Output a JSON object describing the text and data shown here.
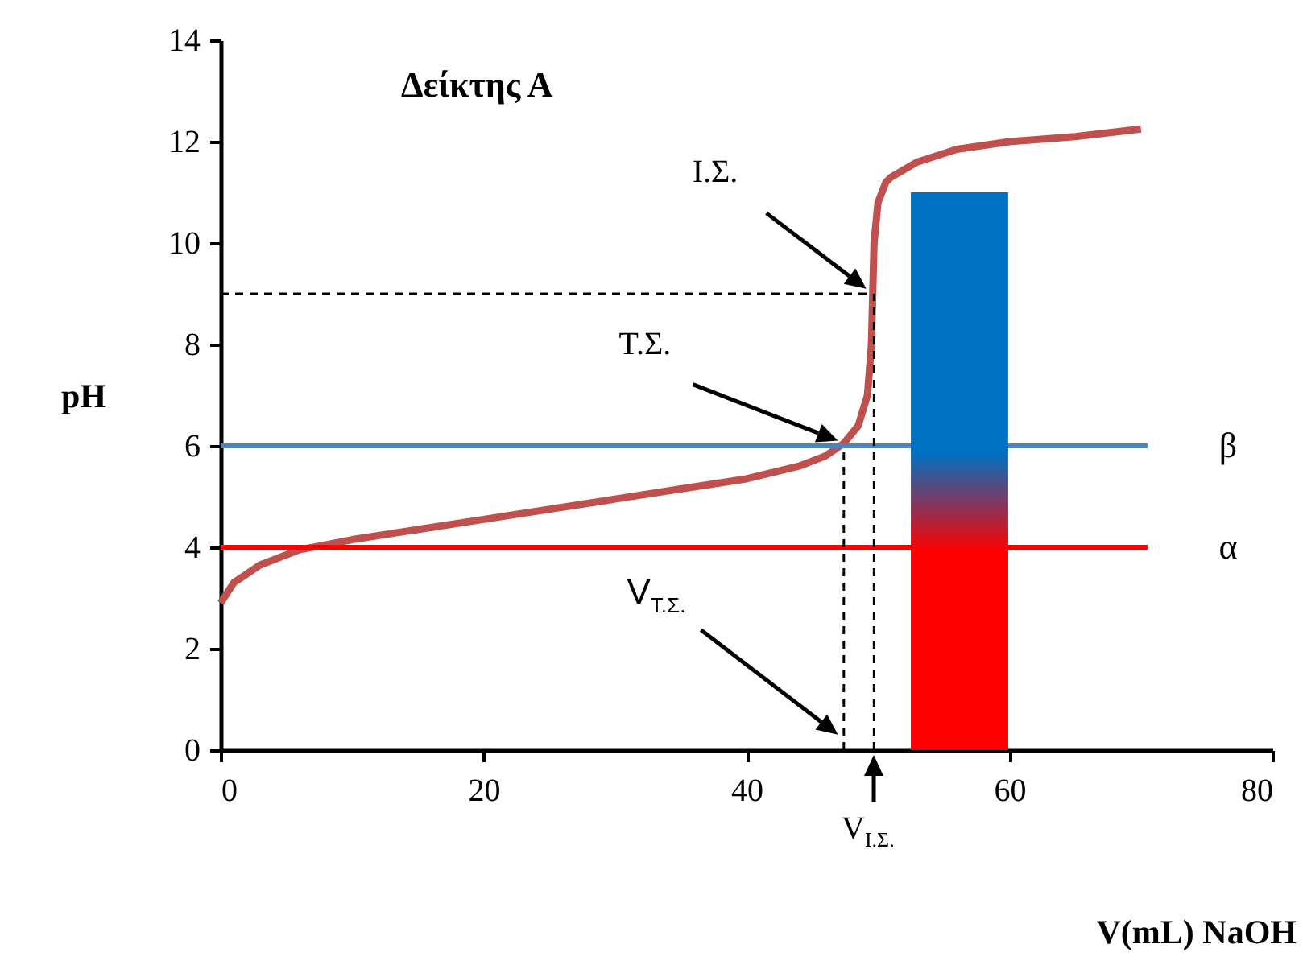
{
  "chart_data": {
    "type": "line",
    "title": "Δείκτης Α",
    "xlabel": "V(mL) NaOH",
    "ylabel": "pH",
    "xlim": [
      0,
      80
    ],
    "ylim": [
      0,
      14
    ],
    "xticks": [
      0,
      20,
      40,
      60,
      80
    ],
    "yticks": [
      0,
      2,
      4,
      6,
      8,
      10,
      12,
      14
    ],
    "grid": false,
    "annotations": [
      "Ι.Σ.",
      "Τ.Σ.",
      "V$_{Τ.Σ.}$",
      "V$_{Ι.Σ.}$"
    ],
    "series": [
      {
        "color": "#c0504d",
        "line_style": "solid",
        "x": [
          0,
          1,
          3,
          6,
          10,
          20,
          30,
          35,
          40,
          44,
          46,
          47.4,
          48.5,
          49.2,
          49.5,
          49.6,
          49.7,
          50,
          50.6,
          51,
          53,
          56,
          60,
          65,
          70
        ],
        "values": [
          2.9,
          3.3,
          3.65,
          3.95,
          4.15,
          4.55,
          4.95,
          5.15,
          5.35,
          5.6,
          5.8,
          6.05,
          6.4,
          7,
          8,
          9,
          10,
          10.8,
          11.2,
          11.3,
          11.6,
          11.85,
          12,
          12.1,
          12.25
        ]
      },
      {
        "name": "β",
        "color": "#4f81bd",
        "line_style": "solid",
        "x": [
          0,
          70.5
        ],
        "values": [
          6,
          6
        ]
      },
      {
        "name": "α",
        "color": "#ff0000",
        "line_style": "solid",
        "x": [
          0,
          70.5
        ],
        "values": [
          4,
          4
        ]
      },
      {
        "color": "#000000",
        "line_style": "dashed",
        "x": [
          0,
          49.6
        ],
        "values": [
          9,
          9
        ]
      },
      {
        "color": "#000000",
        "line_style": "dashed",
        "x": [
          49.7,
          49.7
        ],
        "values": [
          0,
          9
        ]
      },
      {
        "color": "#000000",
        "line_style": "dashed",
        "x": [
          47.4,
          47.4
        ],
        "values": [
          0,
          6
        ]
      },
      {
        "type": "area",
        "color": "#0070c0",
        "x": [
          52.5,
          59.9
        ],
        "values": [
          11,
          11
        ]
      },
      {
        "type": "area",
        "color": "#ff0000",
        "x": [
          52.5,
          59.9
        ],
        "values": [
          5.85,
          5.85
        ]
      }
    ]
  }
}
